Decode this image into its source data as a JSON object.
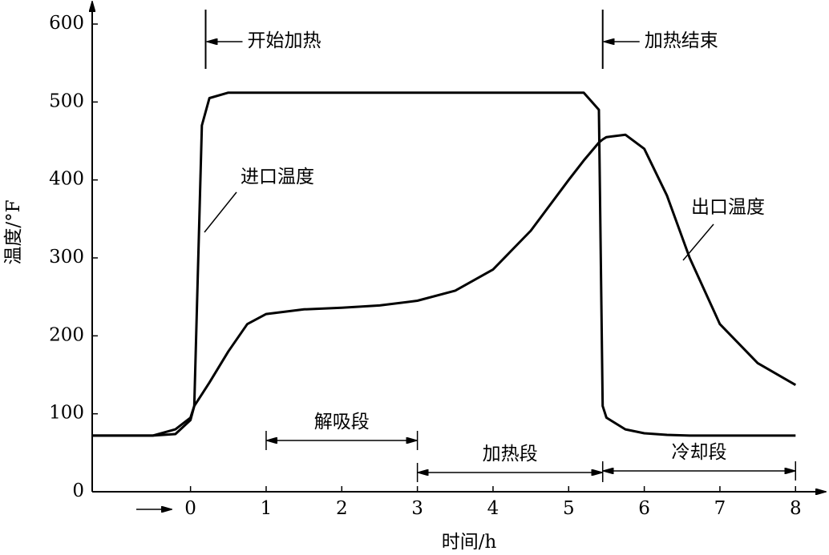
{
  "chart_data": {
    "type": "line",
    "x_label": "时间/h",
    "y_label": "温度/°F",
    "x": [
      -1.3,
      -0.5,
      -0.2,
      0,
      0.05,
      0.15,
      0.25,
      0.5,
      0.75,
      1,
      1.5,
      2,
      2.5,
      3,
      3.5,
      4,
      4.5,
      5,
      5.2,
      5.4,
      5.45,
      5.5,
      5.75,
      6,
      6.3,
      6.6,
      7,
      7.5,
      8
    ],
    "series": [
      {
        "name": "进口温度",
        "color": "#000000",
        "values": [
          72,
          72,
          74,
          92,
          110,
          470,
          505,
          512,
          512,
          512,
          512,
          512,
          512,
          512,
          512,
          512,
          512,
          512,
          512,
          490,
          110,
          95,
          80,
          75,
          73,
          72,
          72,
          72,
          72
        ]
      },
      {
        "name": "出口温度",
        "color": "#000000",
        "values": [
          72,
          72,
          80,
          95,
          110,
          125,
          140,
          180,
          215,
          228,
          234,
          236,
          239,
          245,
          258,
          285,
          335,
          400,
          425,
          448,
          452,
          455,
          458,
          440,
          380,
          300,
          215,
          165,
          137
        ]
      }
    ],
    "events": [
      {
        "label": "开始加热",
        "x": 0.2
      },
      {
        "label": "加热结束",
        "x": 5.45
      }
    ],
    "spans": [
      {
        "label": "解吸段",
        "start": 1,
        "end": 3
      },
      {
        "label": "加热段",
        "start": 3,
        "end": 5.45
      },
      {
        "label": "冷却段",
        "start": 5.45,
        "end": 8
      }
    ],
    "xlim": [
      -1.3,
      8.4
    ],
    "ylim": [
      0,
      625
    ],
    "xticks": [
      0,
      1,
      2,
      3,
      4,
      5,
      6,
      7,
      8
    ],
    "yticks": [
      0,
      100,
      200,
      300,
      400,
      500,
      600
    ]
  }
}
